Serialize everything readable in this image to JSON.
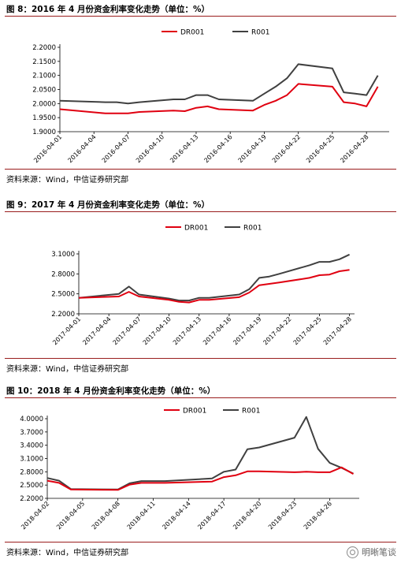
{
  "charts": [
    {
      "title": "图 8：2016 年 4 月份资金利率变化走势（单位：%）",
      "source": "资料来源：Wind，中信证券研究部"
    },
    {
      "title": "图 9：2017 年 4 月份资金利率变化走势（单位：%）",
      "source": "资料来源：Wind，中信证券研究部"
    },
    {
      "title": "图 10：2018 年 4 月份资金利率变化走势（单位：%）",
      "source": "资料来源：Wind，中信证券研究部"
    }
  ],
  "watermark": "明晰笔谈",
  "colors": {
    "DR001": "#e00010",
    "R001": "#404040",
    "rule": "#9a1d1d"
  },
  "chart_data": [
    {
      "type": "line",
      "title": "",
      "legend_position": "top-center",
      "grid": false,
      "ylim": [
        1.9,
        2.2
      ],
      "yticks": [
        "1.9000",
        "1.9500",
        "2.0000",
        "2.0500",
        "2.1000",
        "2.1500",
        "2.2000"
      ],
      "ytick_values": [
        1.9,
        1.95,
        2.0,
        2.05,
        2.1,
        2.15,
        2.2
      ],
      "xticks": [
        "2016-04-01",
        "2016-04-04",
        "2016-04-07",
        "2016-04-10",
        "2016-04-13",
        "2016-04-16",
        "2016-04-19",
        "2016-04-22",
        "2016-04-25",
        "2016-04-28"
      ],
      "xrange": [
        1,
        30
      ],
      "series": [
        {
          "name": "DR001",
          "x": [
            1,
            5,
            6,
            7,
            8,
            11,
            12,
            13,
            14,
            15,
            18,
            19,
            20,
            21,
            22,
            25,
            26,
            27,
            28,
            29
          ],
          "values": [
            1.98,
            1.965,
            1.965,
            1.965,
            1.97,
            1.975,
            1.973,
            1.985,
            1.99,
            1.98,
            1.975,
            1.995,
            2.01,
            2.03,
            2.07,
            2.06,
            2.005,
            2.0,
            1.99,
            2.06
          ]
        },
        {
          "name": "R001",
          "x": [
            1,
            5,
            6,
            7,
            8,
            11,
            12,
            13,
            14,
            15,
            18,
            19,
            20,
            21,
            22,
            25,
            26,
            27,
            28,
            29
          ],
          "values": [
            2.01,
            2.005,
            2.005,
            2.0,
            2.005,
            2.015,
            2.015,
            2.03,
            2.03,
            2.015,
            2.01,
            2.035,
            2.06,
            2.09,
            2.14,
            2.125,
            2.04,
            2.035,
            2.03,
            2.1
          ]
        }
      ]
    },
    {
      "type": "line",
      "title": "",
      "legend_position": "top-center",
      "grid": false,
      "ylim": [
        2.2,
        3.1
      ],
      "yticks": [
        "2.2000",
        "2.5000",
        "2.8000",
        "3.1000"
      ],
      "ytick_values": [
        2.2,
        2.5,
        2.8,
        3.1
      ],
      "xticks": [
        "2017-04-01",
        "2017-04-04",
        "2017-04-07",
        "2017-04-10",
        "2017-04-13",
        "2017-04-16",
        "2017-04-19",
        "2017-04-22",
        "2017-04-25",
        "2017-04-28"
      ],
      "xrange": [
        1,
        28.5
      ],
      "series": [
        {
          "name": "DR001",
          "x": [
            1,
            5,
            6,
            7,
            10,
            11,
            12,
            13,
            14,
            17,
            18,
            19,
            20,
            21,
            24,
            25,
            26,
            27,
            28
          ],
          "values": [
            2.44,
            2.46,
            2.53,
            2.46,
            2.41,
            2.38,
            2.37,
            2.41,
            2.41,
            2.45,
            2.52,
            2.63,
            2.65,
            2.67,
            2.74,
            2.78,
            2.79,
            2.84,
            2.86
          ]
        },
        {
          "name": "R001",
          "x": [
            1,
            5,
            6,
            7,
            10,
            11,
            12,
            13,
            14,
            17,
            18,
            19,
            20,
            21,
            24,
            25,
            26,
            27,
            28
          ],
          "values": [
            2.44,
            2.5,
            2.61,
            2.49,
            2.43,
            2.4,
            2.4,
            2.44,
            2.44,
            2.49,
            2.57,
            2.74,
            2.76,
            2.8,
            2.93,
            2.98,
            2.98,
            3.02,
            3.09
          ]
        }
      ]
    },
    {
      "type": "line",
      "title": "",
      "legend_position": "top-right",
      "grid": false,
      "ylim": [
        2.2,
        4.0
      ],
      "yticks": [
        "2.2000",
        "2.5000",
        "2.8000",
        "3.1000",
        "3.4000",
        "3.7000",
        "4.0000"
      ],
      "ytick_values": [
        2.2,
        2.5,
        2.8,
        3.1,
        3.4,
        3.7,
        4.0
      ],
      "xticks": [
        "2018-04-02",
        "2018-04-05",
        "2018-04-08",
        "2018-04-11",
        "2018-04-14",
        "2018-04-17",
        "2018-04-20",
        "2018-04-23",
        "2018-04-26"
      ],
      "xrange": [
        2,
        28.5
      ],
      "series": [
        {
          "name": "DR001",
          "x": [
            2,
            3,
            4,
            8,
            9,
            10,
            11,
            12,
            16,
            17,
            18,
            19,
            20,
            23,
            24,
            25,
            26,
            27,
            28
          ],
          "values": [
            2.6,
            2.55,
            2.4,
            2.39,
            2.51,
            2.55,
            2.55,
            2.55,
            2.58,
            2.68,
            2.72,
            2.81,
            2.81,
            2.79,
            2.8,
            2.79,
            2.79,
            2.9,
            2.75
          ]
        },
        {
          "name": "R001",
          "x": [
            2,
            3,
            4,
            8,
            9,
            10,
            11,
            12,
            16,
            17,
            18,
            19,
            20,
            23,
            24,
            25,
            26,
            27,
            28
          ],
          "values": [
            2.66,
            2.6,
            2.41,
            2.4,
            2.54,
            2.59,
            2.59,
            2.59,
            2.65,
            2.8,
            2.85,
            3.31,
            3.35,
            3.57,
            4.04,
            3.32,
            3.0,
            2.89,
            2.76
          ]
        }
      ]
    }
  ]
}
